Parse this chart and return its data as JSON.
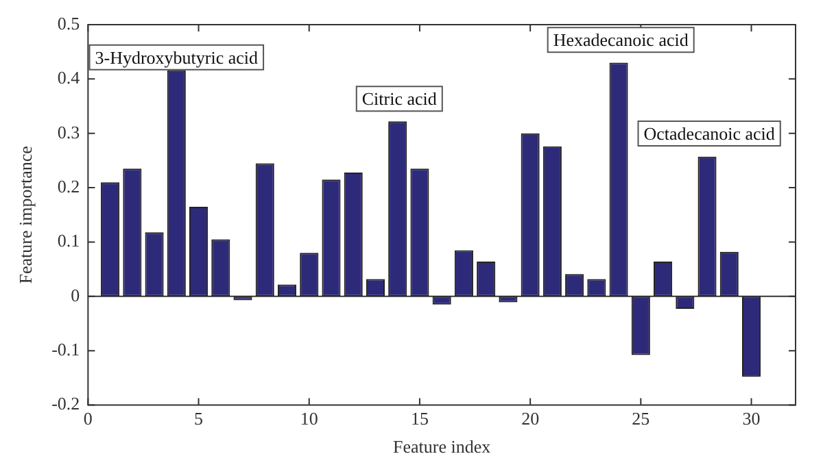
{
  "chart_data": {
    "type": "bar",
    "xlabel": "Feature index",
    "ylabel": "Feature importance",
    "x": [
      1,
      2,
      3,
      4,
      5,
      6,
      7,
      8,
      9,
      10,
      11,
      12,
      13,
      14,
      15,
      16,
      17,
      18,
      19,
      20,
      21,
      22,
      23,
      24,
      25,
      26,
      27,
      28,
      29,
      30
    ],
    "values": [
      0.21,
      0.235,
      0.118,
      0.416,
      0.165,
      0.105,
      -0.007,
      0.245,
      0.022,
      0.08,
      0.215,
      0.228,
      0.032,
      0.322,
      0.235,
      -0.015,
      0.085,
      0.064,
      -0.011,
      0.3,
      0.276,
      0.041,
      0.032,
      0.43,
      -0.108,
      0.064,
      -0.023,
      0.257,
      0.082,
      -0.148
    ],
    "color": "#2e2a7a",
    "xlim": [
      0,
      32
    ],
    "xticks": [
      0,
      5,
      10,
      15,
      20,
      25,
      30
    ],
    "ylim": [
      -0.2,
      0.5
    ],
    "yticks": [
      -0.2,
      -0.1,
      0,
      0.1,
      0.2,
      0.3,
      0.4,
      0.5
    ],
    "ref_lines": [
      {
        "axis": "y",
        "value": 0,
        "color": "#333333"
      }
    ],
    "annotations": [
      "3-Hydroxybutyric acid",
      "Citric acid",
      "Hexadecanoic acid",
      "Octadecanoic acid"
    ]
  }
}
